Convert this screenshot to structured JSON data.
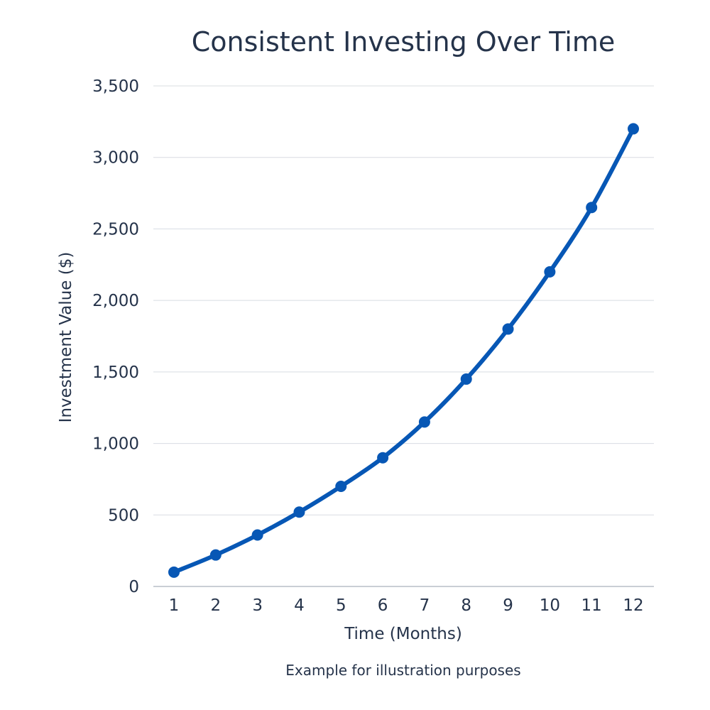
{
  "colors": {
    "series": "#0757b5",
    "text": "#25334a",
    "grid": "#d8dce2"
  },
  "chart_data": {
    "type": "line",
    "title": "Consistent Investing Over Time",
    "xlabel": "Time (Months)",
    "ylabel": "Investment Value ($)",
    "footnote": "Example for illustration purposes",
    "x": [
      1,
      2,
      3,
      4,
      5,
      6,
      7,
      8,
      9,
      10,
      11,
      12
    ],
    "x_tick_labels": [
      "1",
      "2",
      "3",
      "4",
      "5",
      "6",
      "7",
      "8",
      "9",
      "10",
      "11",
      "12"
    ],
    "y_ticks": [
      0,
      500,
      1000,
      1500,
      2000,
      2500,
      3000,
      3500
    ],
    "y_tick_labels": [
      "0",
      "500",
      "1,000",
      "1,500",
      "2,000",
      "2,500",
      "3,000",
      "3,500"
    ],
    "ylim": [
      0,
      3500
    ],
    "grid": true,
    "smooth": true,
    "markers": true,
    "series": [
      {
        "values": [
          100,
          220,
          360,
          520,
          700,
          900,
          1150,
          1450,
          1800,
          2200,
          2650,
          3200
        ]
      }
    ]
  }
}
